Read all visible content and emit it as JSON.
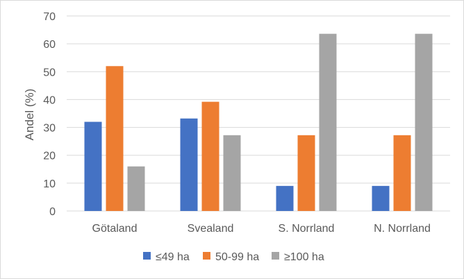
{
  "chart_data": {
    "type": "bar",
    "categories": [
      "Götaland",
      "Svealand",
      "S. Norrland",
      "N. Norrland"
    ],
    "series": [
      {
        "name": "≤49 ha",
        "color": "#4472c4",
        "values": [
          32,
          33.2,
          9,
          9
        ]
      },
      {
        "name": "50-99 ha",
        "color": "#ed7d31",
        "values": [
          52,
          39.2,
          27.2,
          27.2
        ]
      },
      {
        "name": "≥100 ha",
        "color": "#a5a5a5",
        "values": [
          16,
          27.2,
          63.6,
          63.6
        ]
      }
    ],
    "ylabel": "Andel (%)",
    "ylim": [
      0,
      70
    ],
    "yticks": [
      0,
      10,
      20,
      30,
      40,
      50,
      60,
      70
    ],
    "grid": true,
    "legend_position": "bottom"
  }
}
